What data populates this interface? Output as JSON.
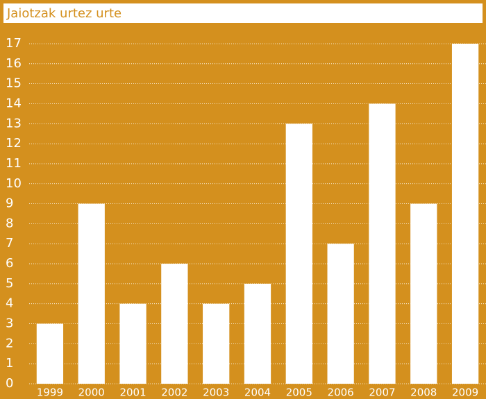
{
  "chart_data": {
    "type": "bar",
    "title": "Jaiotzak urtez urte",
    "categories": [
      "1999",
      "2000",
      "2001",
      "2002",
      "2003",
      "2004",
      "2005",
      "2006",
      "2007",
      "2008",
      "2009"
    ],
    "values": [
      3,
      9,
      4,
      6,
      4,
      5,
      13,
      7,
      14,
      9,
      17
    ],
    "color": "#ffffff",
    "ylim": [
      0,
      17
    ],
    "yticks": [
      0,
      1,
      2,
      3,
      4,
      5,
      6,
      7,
      8,
      9,
      10,
      11,
      12,
      13,
      14,
      15,
      16,
      17
    ],
    "grid": true
  }
}
